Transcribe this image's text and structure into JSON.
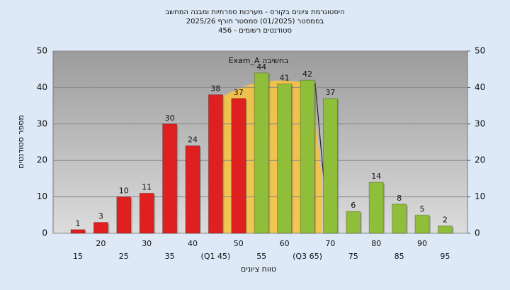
{
  "chart_data": {
    "type": "bar",
    "title": "היסטוגרמת ציונים בקורס - מערכות ספרתיות ומבנה המחשב",
    "subtitle": "בסמסטר  (01/2025)  סמסטר חורף 2025/26",
    "subtitle2": "סטודנטים רשומים - 456",
    "annotation": "Exam_A בחשיבה",
    "x_label": "טווח ציונים",
    "y_label": "מספר סטודנטים",
    "categories": [
      "15",
      "20",
      "25",
      "30",
      "35",
      "40",
      "(Q1 45)",
      "50",
      "55",
      "60",
      "(Q3 65)",
      "70",
      "75",
      "80",
      "85",
      "90",
      "95"
    ],
    "values": [
      1,
      3,
      10,
      11,
      30,
      24,
      38,
      37,
      44,
      41,
      42,
      37,
      6,
      14,
      8,
      5,
      2
    ],
    "colors": [
      "#e02020",
      "#e02020",
      "#e02020",
      "#e02020",
      "#e02020",
      "#e02020",
      "#e02020",
      "#e02020",
      "#8fbf3a",
      "#8fbf3a",
      "#8fbf3a",
      "#8fbf3a",
      "#8fbf3a",
      "#8fbf3a",
      "#8fbf3a",
      "#8fbf3a",
      "#8fbf3a"
    ],
    "ylim": [
      0,
      50
    ],
    "yticks": [
      0,
      10,
      20,
      30,
      40,
      50
    ],
    "y2lim": [
      0,
      50
    ],
    "y2ticks": [
      0,
      10,
      20,
      30,
      40,
      50
    ],
    "grid": true
  }
}
